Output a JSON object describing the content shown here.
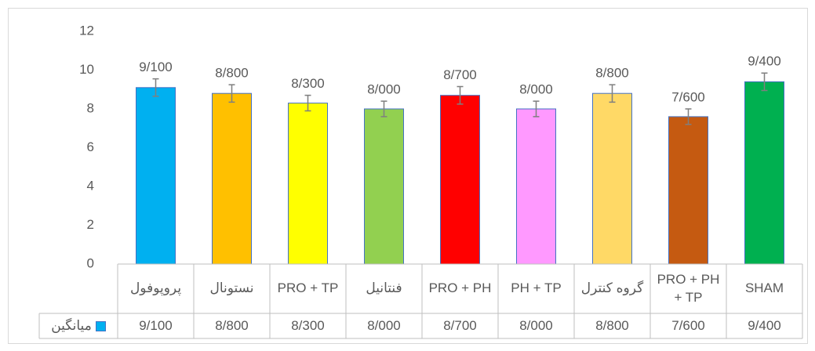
{
  "chart_data": {
    "type": "bar",
    "categories": [
      "پروپوفول",
      "نستونال",
      "PRO + TP",
      "فنتانیل",
      "PRO + PH",
      "PH + TP",
      "گروه کنترل",
      "PRO + PH + TP",
      "SHAM"
    ],
    "series": [
      {
        "name": "میانگین",
        "color": "#00b0f0",
        "values": [
          9.1,
          8.8,
          8.3,
          8.0,
          8.7,
          8.0,
          8.8,
          7.6,
          9.4
        ],
        "value_labels": [
          "9/100",
          "8/800",
          "8/300",
          "8/000",
          "8/700",
          "8/000",
          "8/800",
          "7/600",
          "9/400"
        ],
        "errors": [
          0.45,
          0.45,
          0.4,
          0.4,
          0.45,
          0.4,
          0.45,
          0.4,
          0.45
        ],
        "colors": [
          "#00b0f0",
          "#ffc000",
          "#ffff00",
          "#92d050",
          "#ff0000",
          "#ff99ff",
          "#ffd966",
          "#c55a11",
          "#00b050"
        ]
      }
    ],
    "ylim": [
      0,
      12
    ],
    "yticks": [
      0,
      2,
      4,
      6,
      8,
      10,
      12
    ],
    "grid": false,
    "data_table": true
  }
}
